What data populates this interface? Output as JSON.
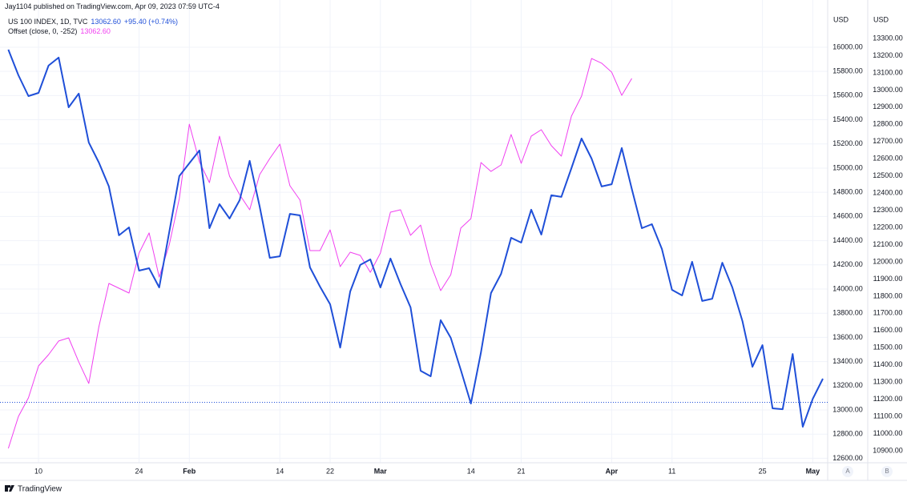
{
  "header": {
    "attribution": "Jay1104 published on TradingView.com, Apr 09, 2023 07:59 UTC-4"
  },
  "chart_data": {
    "type": "line",
    "categories": [
      null,
      null,
      null,
      "10",
      null,
      null,
      null,
      null,
      null,
      null,
      null,
      null,
      null,
      "24",
      null,
      null,
      null,
      null,
      "Feb",
      null,
      null,
      null,
      null,
      null,
      null,
      null,
      null,
      "14",
      null,
      null,
      null,
      null,
      "22",
      null,
      null,
      null,
      null,
      "Mar",
      null,
      null,
      null,
      null,
      null,
      null,
      null,
      null,
      "14",
      null,
      null,
      null,
      null,
      "21",
      null,
      null,
      null,
      null,
      null,
      null,
      null,
      null,
      "Apr",
      null,
      null,
      null,
      null,
      null,
      "11",
      null,
      null,
      null,
      null,
      null,
      null,
      null,
      null,
      "25",
      null,
      null,
      null,
      null,
      "May",
      null
    ],
    "series": [
      {
        "name": "US 100 INDEX, 1D, TVC",
        "legend_value": "13062.60",
        "legend_change": "+95.40 (+0.74%)",
        "color": "#1f4fd8",
        "values": [
          15980,
          15768,
          15596,
          15622,
          15848,
          15914,
          15503,
          15616,
          15212,
          15046,
          14848,
          14444,
          14510,
          14152,
          14172,
          14013,
          14470,
          14934,
          15040,
          15146,
          14503,
          14702,
          14583,
          14735,
          15060,
          14682,
          14258,
          14271,
          14622,
          14609,
          14179,
          14020,
          13874,
          13516,
          13980,
          14199,
          14245,
          14013,
          14252,
          14040,
          13848,
          13324,
          13278,
          13742,
          13596,
          13331,
          13053,
          13477,
          13967,
          14126,
          14424,
          14384,
          14656,
          14450,
          14775,
          14762,
          15000,
          15245,
          15079,
          14848,
          14867,
          15166,
          14828,
          14503,
          14536,
          14331,
          13993,
          13947,
          14225,
          13901,
          13920,
          14218,
          14013,
          13735,
          13357,
          13536,
          13013,
          13006,
          13463,
          12861,
          13092,
          13258
        ]
      },
      {
        "name": "Offset (close, 0, -252)",
        "legend_value": "13062.60",
        "color": "#f040f0",
        "axis": "y2",
        "values": [
          10914,
          11100,
          11208,
          11394,
          11459,
          11539,
          11557,
          11417,
          11292,
          11622,
          11874,
          11846,
          11818,
          12051,
          12168,
          11911,
          12098,
          12368,
          12801,
          12582,
          12461,
          12731,
          12498,
          12391,
          12303,
          12508,
          12601,
          12685,
          12443,
          12359,
          12065,
          12065,
          12186,
          11972,
          12056,
          12037,
          11939,
          12051,
          12289,
          12303,
          12154,
          12214,
          11986,
          11832,
          11925,
          12196,
          12251,
          12578,
          12526,
          12564,
          12741,
          12573,
          12731,
          12769,
          12676,
          12615,
          12848,
          12964,
          13183,
          13156,
          13104,
          12969,
          13067,
          null,
          null,
          null,
          null,
          null,
          null,
          null,
          null,
          null,
          null,
          null,
          null,
          null,
          null,
          null,
          null,
          null,
          null,
          null
        ]
      }
    ],
    "y_unit": "USD",
    "y2_unit": "USD",
    "ylim": [
      12563,
      16291
    ],
    "yticks": [
      {
        "value": 12600,
        "label": "12600.00"
      },
      {
        "value": 12800,
        "label": "12800.00"
      },
      {
        "value": 13000,
        "label": "13000.00"
      },
      {
        "value": 13200,
        "label": "13200.00"
      },
      {
        "value": 13400,
        "label": "13400.00"
      },
      {
        "value": 13600,
        "label": "13600.00"
      },
      {
        "value": 13800,
        "label": "13800.00"
      },
      {
        "value": 14000,
        "label": "14000.00"
      },
      {
        "value": 14200,
        "label": "14200.00"
      },
      {
        "value": 14400,
        "label": "14400.00"
      },
      {
        "value": 14600,
        "label": "14600.00"
      },
      {
        "value": 14800,
        "label": "14800.00"
      },
      {
        "value": 15000,
        "label": "15000.00"
      },
      {
        "value": 15200,
        "label": "15200.00"
      },
      {
        "value": 15400,
        "label": "15400.00"
      },
      {
        "value": 15600,
        "label": "15600.00"
      },
      {
        "value": 15800,
        "label": "15800.00"
      },
      {
        "value": 16000,
        "label": "16000.00"
      }
    ],
    "y2lim": [
      10830,
      13454
    ],
    "y2ticks": [
      {
        "value": 10900,
        "label": "10900.00"
      },
      {
        "value": 11000,
        "label": "11000.00"
      },
      {
        "value": 11100,
        "label": "11100.00"
      },
      {
        "value": 11200,
        "label": "11200.00"
      },
      {
        "value": 11300,
        "label": "11300.00"
      },
      {
        "value": 11400,
        "label": "11400.00"
      },
      {
        "value": 11500,
        "label": "11500.00"
      },
      {
        "value": 11600,
        "label": "11600.00"
      },
      {
        "value": 11700,
        "label": "11700.00"
      },
      {
        "value": 11800,
        "label": "11800.00"
      },
      {
        "value": 11900,
        "label": "11900.00"
      },
      {
        "value": 12000,
        "label": "12000.00"
      },
      {
        "value": 12100,
        "label": "12100.00"
      },
      {
        "value": 12200,
        "label": "12200.00"
      },
      {
        "value": 12300,
        "label": "12300.00"
      },
      {
        "value": 12400,
        "label": "12400.00"
      },
      {
        "value": 12500,
        "label": "12500.00"
      },
      {
        "value": 12600,
        "label": "12600.00"
      },
      {
        "value": 12700,
        "label": "12700.00"
      },
      {
        "value": 12800,
        "label": "12800.00"
      },
      {
        "value": 12900,
        "label": "12900.00"
      },
      {
        "value": 13000,
        "label": "13000.00"
      },
      {
        "value": 13100,
        "label": "13100.00"
      },
      {
        "value": 13200,
        "label": "13200.00"
      },
      {
        "value": 13300,
        "label": "13300.00"
      }
    ],
    "price_line": 13062.6,
    "grid": true
  },
  "footer": {
    "brand": "TradingView",
    "buttons": [
      "A",
      "B"
    ]
  }
}
